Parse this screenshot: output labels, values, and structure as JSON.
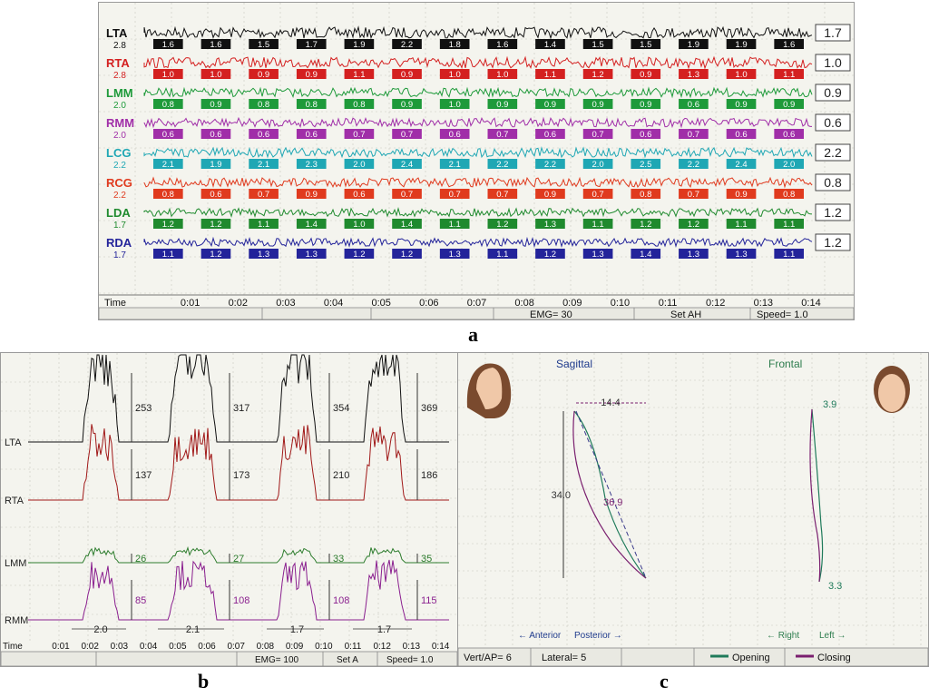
{
  "captions": {
    "a": "a",
    "b": "b",
    "c": "c"
  },
  "panel_a": {
    "time_label": "Time",
    "time_ticks": [
      "0:01",
      "0:02",
      "0:03",
      "0:04",
      "0:05",
      "0:06",
      "0:07",
      "0:08",
      "0:09",
      "0:10",
      "0:11",
      "0:12",
      "0:13",
      "0:14"
    ],
    "status": {
      "emg": "EMG= 30",
      "set": "Set AH",
      "speed": "Speed= 1.0"
    },
    "channels": [
      {
        "name": "LTA",
        "scale": "2.8",
        "avg": "1.7",
        "color": "#111111",
        "values": [
          "1.6",
          "1.6",
          "1.5",
          "1.7",
          "1.9",
          "2.2",
          "1.8",
          "1.6",
          "1.4",
          "1.5",
          "1.5",
          "1.9",
          "1.9",
          "1.6"
        ]
      },
      {
        "name": "RTA",
        "scale": "2.8",
        "avg": "1.0",
        "color": "#d42020",
        "values": [
          "1.0",
          "1.0",
          "0.9",
          "0.9",
          "1.1",
          "0.9",
          "1.0",
          "1.0",
          "1.1",
          "1.2",
          "0.9",
          "1.3",
          "1.0",
          "1.1"
        ]
      },
      {
        "name": "LMM",
        "scale": "2.0",
        "avg": "0.9",
        "color": "#1e9a3a",
        "values": [
          "0.8",
          "0.9",
          "0.8",
          "0.8",
          "0.8",
          "0.9",
          "1.0",
          "0.9",
          "0.9",
          "0.9",
          "0.9",
          "0.6",
          "0.9",
          "0.9"
        ]
      },
      {
        "name": "RMM",
        "scale": "2.0",
        "avg": "0.6",
        "color": "#a02ea8",
        "values": [
          "0.6",
          "0.6",
          "0.6",
          "0.6",
          "0.7",
          "0.7",
          "0.6",
          "0.7",
          "0.6",
          "0.7",
          "0.6",
          "0.7",
          "0.6",
          "0.6"
        ]
      },
      {
        "name": "LCG",
        "scale": "2.2",
        "avg": "2.2",
        "color": "#1fa7b4",
        "values": [
          "2.1",
          "1.9",
          "2.1",
          "2.3",
          "2.0",
          "2.4",
          "2.1",
          "2.2",
          "2.2",
          "2.0",
          "2.5",
          "2.2",
          "2.4",
          "2.0"
        ]
      },
      {
        "name": "RCG",
        "scale": "2.2",
        "avg": "0.8",
        "color": "#e03a1e",
        "values": [
          "0.8",
          "0.6",
          "0.7",
          "0.9",
          "0.6",
          "0.7",
          "0.7",
          "0.7",
          "0.9",
          "0.7",
          "0.8",
          "0.7",
          "0.9",
          "0.8"
        ]
      },
      {
        "name": "LDA",
        "scale": "1.7",
        "avg": "1.2",
        "color": "#1f8a2e",
        "values": [
          "1.2",
          "1.2",
          "1.1",
          "1.4",
          "1.0",
          "1.4",
          "1.1",
          "1.2",
          "1.3",
          "1.1",
          "1.2",
          "1.2",
          "1.1",
          "1.1"
        ]
      },
      {
        "name": "RDA",
        "scale": "1.7",
        "avg": "1.2",
        "color": "#23239a",
        "values": [
          "1.1",
          "1.2",
          "1.3",
          "1.3",
          "1.2",
          "1.2",
          "1.3",
          "1.1",
          "1.2",
          "1.3",
          "1.4",
          "1.3",
          "1.3",
          "1.1"
        ]
      }
    ]
  },
  "panel_b": {
    "time_label": "Time",
    "time_ticks": [
      "0:01",
      "0:02",
      "0:03",
      "0:04",
      "0:05",
      "0:06",
      "0:07",
      "0:08",
      "0:09",
      "0:10",
      "0:11",
      "0:12",
      "0:13",
      "0:14"
    ],
    "status": {
      "emg": "EMG= 100",
      "set": "Set A",
      "speed": "Speed= 1.0"
    },
    "channels": [
      {
        "name": "LTA",
        "color": "#111111",
        "peaks": [
          "253",
          "317",
          "354",
          "369"
        ]
      },
      {
        "name": "RTA",
        "color": "#a01818",
        "peaks": [
          "137",
          "173",
          "210",
          "186"
        ]
      },
      {
        "name": "LMM",
        "color": "#2e7d2e",
        "peaks": [
          "26",
          "27",
          "33",
          "35"
        ]
      },
      {
        "name": "RMM",
        "color": "#8a1f8f",
        "peaks": [
          "85",
          "108",
          "108",
          "115"
        ]
      }
    ],
    "intervals": [
      "2.0",
      "2.1",
      "1.7",
      "1.7"
    ]
  },
  "panel_c": {
    "sagittal_title": "Sagittal",
    "frontal_title": "Frontal",
    "sagittal_width": "14.4",
    "sagittal_height": "34.0",
    "sagittal_path_length": "36.9",
    "frontal_top": "3.9",
    "frontal_bottom": "3.3",
    "axis_sagittal": {
      "anterior": "← Anterior",
      "posterior": "Posterior →"
    },
    "axis_frontal": {
      "right": "← Right",
      "left": "Left →"
    },
    "footer": {
      "vert_ap": "Vert/AP= 6",
      "lateral": "Lateral= 5",
      "opening": "Opening",
      "closing": "Closing"
    },
    "colors": {
      "opening": "#1f7a5a",
      "closing": "#7a1f6f",
      "title": "#1e3a8c",
      "frontal_title": "#2e7d4e"
    }
  }
}
